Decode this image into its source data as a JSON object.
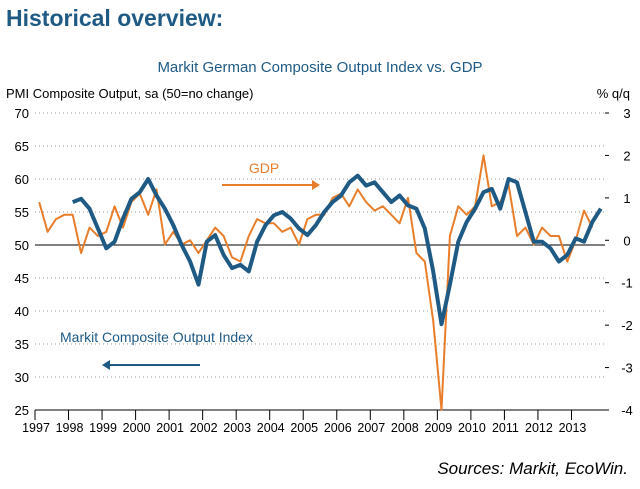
{
  "header": {
    "title": "Historical overview:"
  },
  "chart_data": {
    "type": "line",
    "title": "Markit German Composite Output Index vs. GDP",
    "y_label": "PMI Composite Output, sa (50=no change)",
    "y2_label": "% q/q",
    "annotations": [
      "GDP",
      "Markit Composite Output Index"
    ],
    "source": "Sources: Markit, EcoWin.",
    "xlim": [
      1997,
      2014
    ],
    "xticks": [
      1997,
      1998,
      1999,
      2000,
      2001,
      2002,
      2003,
      2004,
      2005,
      2006,
      2007,
      2008,
      2009,
      2010,
      2011,
      2012,
      2013
    ],
    "ylim": [
      25,
      70
    ],
    "yticks": [
      25,
      30,
      35,
      40,
      45,
      50,
      55,
      60,
      65,
      70
    ],
    "y2lim": [
      -4,
      3
    ],
    "y2ticks": [
      -4,
      -3,
      -2,
      -1,
      0,
      1,
      2,
      3
    ],
    "grid": true,
    "series": [
      {
        "name": "GDP",
        "color": "#e87e2c",
        "axis": "y2",
        "x": [
          1997.125,
          1997.375,
          1997.625,
          1997.875,
          1998.125,
          1998.375,
          1998.625,
          1998.875,
          1999.125,
          1999.375,
          1999.625,
          1999.875,
          2000.125,
          2000.375,
          2000.625,
          2000.875,
          2001.125,
          2001.375,
          2001.625,
          2001.875,
          2002.125,
          2002.375,
          2002.625,
          2002.875,
          2003.125,
          2003.375,
          2003.625,
          2003.875,
          2004.125,
          2004.375,
          2004.625,
          2004.875,
          2005.125,
          2005.375,
          2005.625,
          2005.875,
          2006.125,
          2006.375,
          2006.625,
          2006.875,
          2007.125,
          2007.375,
          2007.625,
          2007.875,
          2008.125,
          2008.375,
          2008.625,
          2008.875,
          2009.125,
          2009.375,
          2009.625,
          2009.875,
          2010.125,
          2010.375,
          2010.625,
          2010.875,
          2011.125,
          2011.375,
          2011.625,
          2011.875,
          2012.125,
          2012.375,
          2012.625,
          2012.875,
          2013.125,
          2013.375,
          2013.625
        ],
        "values": [
          0.9,
          0.2,
          0.5,
          0.6,
          0.6,
          -0.3,
          0.3,
          0.1,
          0.2,
          0.8,
          0.3,
          0.9,
          1.1,
          0.6,
          1.2,
          -0.1,
          0.2,
          -0.1,
          0.0,
          -0.3,
          0.0,
          0.3,
          0.1,
          -0.4,
          -0.5,
          0.1,
          0.5,
          0.4,
          0.4,
          0.2,
          0.3,
          -0.1,
          0.5,
          0.6,
          0.6,
          1.0,
          1.1,
          0.8,
          1.2,
          0.9,
          0.7,
          0.8,
          0.6,
          0.4,
          1.0,
          -0.3,
          -0.5,
          -1.9,
          -4.0,
          0.1,
          0.8,
          0.6,
          0.8,
          2.0,
          0.8,
          0.9,
          1.3,
          0.1,
          0.3,
          -0.1,
          0.3,
          0.1,
          0.1,
          -0.5,
          0.0,
          0.7,
          0.3
        ]
      },
      {
        "name": "Markit Composite Output Index",
        "color": "#1f5a85",
        "axis": "y",
        "x": [
          1998.125,
          1998.375,
          1998.625,
          1998.875,
          1999.125,
          1999.375,
          1999.625,
          1999.875,
          2000.125,
          2000.375,
          2000.625,
          2000.875,
          2001.125,
          2001.375,
          2001.625,
          2001.875,
          2002.125,
          2002.375,
          2002.625,
          2002.875,
          2003.125,
          2003.375,
          2003.625,
          2003.875,
          2004.125,
          2004.375,
          2004.625,
          2004.875,
          2005.125,
          2005.375,
          2005.625,
          2005.875,
          2006.125,
          2006.375,
          2006.625,
          2006.875,
          2007.125,
          2007.375,
          2007.625,
          2007.875,
          2008.125,
          2008.375,
          2008.625,
          2008.875,
          2009.125,
          2009.375,
          2009.625,
          2009.875,
          2010.125,
          2010.375,
          2010.625,
          2010.875,
          2011.125,
          2011.375,
          2011.625,
          2011.875,
          2012.125,
          2012.375,
          2012.625,
          2012.875,
          2013.125,
          2013.375,
          2013.625,
          2013.875
        ],
        "values": [
          56.5,
          57.0,
          55.5,
          52.5,
          49.5,
          50.5,
          54.0,
          57.0,
          58.0,
          60.0,
          57.5,
          55.5,
          53.0,
          50.0,
          47.5,
          44.0,
          50.5,
          51.5,
          48.5,
          46.5,
          47.0,
          46.0,
          50.5,
          53.0,
          54.5,
          55.0,
          54.0,
          52.5,
          51.5,
          53.0,
          55.0,
          56.5,
          57.5,
          59.5,
          60.5,
          59.0,
          59.5,
          58.0,
          56.5,
          57.5,
          56.0,
          55.5,
          52.5,
          46.0,
          38.0,
          44.0,
          50.5,
          53.5,
          55.5,
          58.0,
          58.5,
          55.5,
          60.0,
          59.5,
          55.0,
          50.5,
          50.5,
          49.5,
          47.5,
          48.5,
          51.0,
          50.5,
          53.5,
          55.5
        ]
      }
    ]
  }
}
